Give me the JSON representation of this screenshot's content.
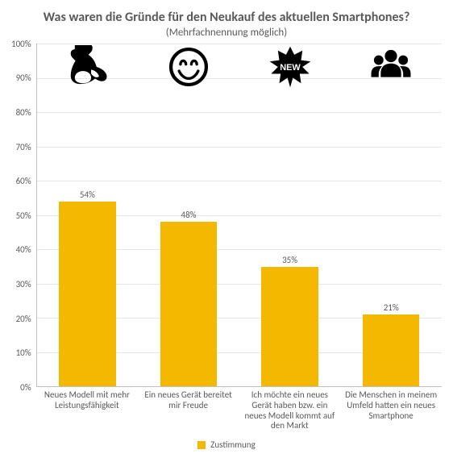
{
  "chart": {
    "type": "bar",
    "title": "Was waren die Gründe für den Neukauf des aktuellen Smartphones?",
    "subtitle": "(Mehrfachnennung möglich)",
    "title_fontsize": 16,
    "subtitle_fontsize": 13,
    "title_color": "#595959",
    "background_color": "#ffffff",
    "yaxis": {
      "min": 0,
      "max": 100,
      "tick_step": 10,
      "tick_suffix": "%",
      "label_fontsize": 11,
      "label_color": "#595959",
      "gridline_color": "#e6e6e6",
      "axis_line_color": "#bfbfbf"
    },
    "bar_color": "#f5b800",
    "bar_width_ratio": 0.56,
    "value_label_fontsize": 11,
    "value_label_color": "#595959",
    "xaxis_label_fontsize": 11,
    "xaxis_label_color": "#595959",
    "icon_color": "#000000",
    "icon_size": 54,
    "categories": [
      {
        "label": "Neues Modell mit mehr Leistungsfähigkeit",
        "value": 54,
        "value_label": "54%",
        "icon": "muscle"
      },
      {
        "label": "Ein neues Gerät bereitet mir Freude",
        "value": 48,
        "value_label": "48%",
        "icon": "smile"
      },
      {
        "label": "Ich möchte ein neues Gerät haben bzw. ein neues Modell kommt auf den Markt",
        "value": 35,
        "value_label": "35%",
        "icon": "new-burst"
      },
      {
        "label": "Die Menschen in meinem Umfeld hatten ein neues Smartphone",
        "value": 21,
        "value_label": "21%",
        "icon": "people"
      }
    ],
    "legend": {
      "label": "Zustimmung",
      "swatch_color": "#f5b800",
      "fontsize": 11,
      "text_color": "#595959"
    }
  }
}
